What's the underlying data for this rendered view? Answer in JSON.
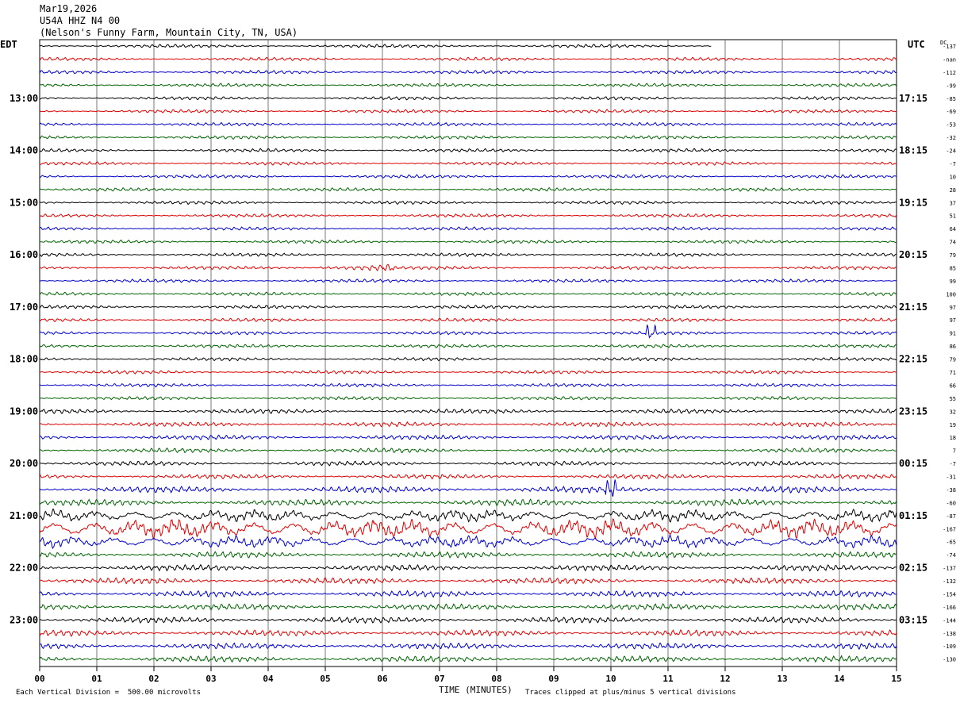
{
  "header": {
    "date": "Mar19,2026",
    "station": "U54A HHZ N4 00",
    "location": "(Nelson's Funny Farm, Mountain City, TN, USA)"
  },
  "labels": {
    "left_tz": "EDT",
    "right_tz": "UTC",
    "dc_label": "DC",
    "x_title": "TIME (MINUTES)",
    "scale_note": "Each Vertical Division =  500.00 microvolts",
    "clip_note": "Traces clipped at plus/minus 5 vertical divisions"
  },
  "colors": {
    "black": "#000000",
    "red": "#e00000",
    "blue": "#0000cc",
    "green": "#006400",
    "grid": "#555555"
  },
  "chart_data": {
    "type": "line",
    "title": "U54A HHZ N4 00",
    "xlabel": "TIME (MINUTES)",
    "x_ticks": [
      "00",
      "01",
      "02",
      "03",
      "04",
      "05",
      "06",
      "07",
      "08",
      "09",
      "10",
      "11",
      "12",
      "13",
      "14",
      "15"
    ],
    "xlim": [
      0,
      15
    ],
    "trace_count": 48,
    "trace_colors": [
      "black",
      "red",
      "blue",
      "green"
    ],
    "left_hour_labels": [
      "13:00",
      "14:00",
      "15:00",
      "16:00",
      "17:00",
      "18:00",
      "19:00",
      "20:00",
      "21:00",
      "22:00",
      "23:00"
    ],
    "right_hour_labels": [
      "17:15",
      "18:15",
      "19:15",
      "20:15",
      "21:15",
      "22:15",
      "23:15",
      "00:15",
      "01:15",
      "02:15",
      "03:15"
    ],
    "dc_offsets": [
      "-137",
      "-nan",
      "-112",
      "-99",
      "-85",
      "-69",
      "-53",
      "-32",
      "-24",
      "-7",
      "10",
      "28",
      "37",
      "51",
      "64",
      "74",
      "79",
      "85",
      "99",
      "100",
      "97",
      "97",
      "91",
      "86",
      "79",
      "71",
      "66",
      "55",
      "32",
      "19",
      "18",
      "7",
      "-7",
      "-31",
      "-38",
      "-60",
      "-87",
      "-167",
      "-65",
      "-74",
      "-137",
      "-132",
      "-154",
      "-166",
      "-144",
      "-138",
      "-109",
      "-130"
    ],
    "first_trace_end_minute": 11.75
  }
}
